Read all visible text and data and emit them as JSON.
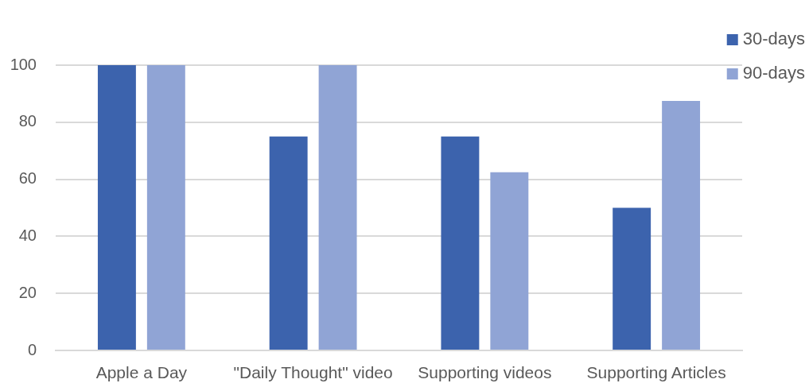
{
  "chart_data": {
    "type": "bar",
    "categories": [
      "Apple a Day",
      "\"Daily Thought\" video",
      "Supporting videos",
      "Supporting Articles"
    ],
    "series": [
      {
        "name": "30-days",
        "color": "#3c63ad",
        "values": [
          100,
          75,
          75,
          50
        ]
      },
      {
        "name": "90-days",
        "color": "#90a4d5",
        "values": [
          100,
          100,
          62.5,
          87.5
        ]
      }
    ],
    "ylim": [
      0,
      100
    ],
    "yticks": [
      0,
      20,
      40,
      60,
      80,
      100
    ],
    "grid": "y",
    "legend": "top right"
  }
}
